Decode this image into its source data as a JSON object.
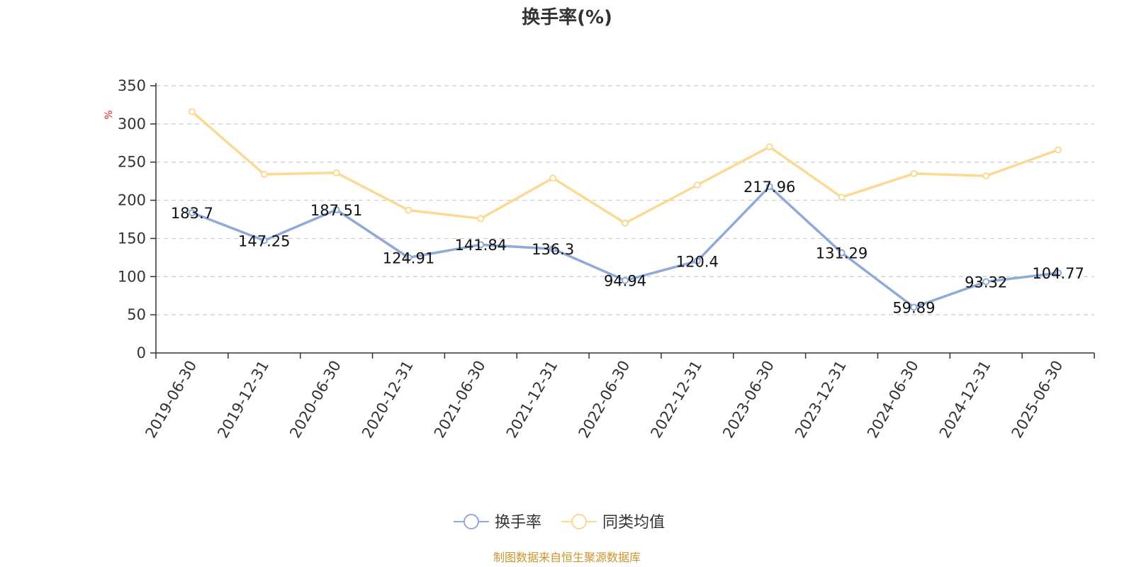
{
  "chart_data": {
    "type": "line",
    "title": "换手率(%)",
    "ylabel": "%",
    "ylim": [
      0,
      350
    ],
    "yticks": [
      0,
      50,
      100,
      150,
      200,
      250,
      300,
      350
    ],
    "grid": true,
    "legend_position": "bottom-center",
    "categories": [
      "2019-06-30",
      "2019-12-31",
      "2020-06-30",
      "2020-12-31",
      "2021-06-30",
      "2021-12-31",
      "2022-06-30",
      "2022-12-31",
      "2023-06-30",
      "2023-12-31",
      "2024-06-30",
      "2024-12-31",
      "2025-06-30"
    ],
    "series": [
      {
        "name": "换手率",
        "color": "#8eaad6",
        "values": [
          183.7,
          147.25,
          187.51,
          124.91,
          141.84,
          136.3,
          94.94,
          120.4,
          217.96,
          131.29,
          59.89,
          93.32,
          104.77
        ],
        "labels": [
          "183.7",
          "147.25",
          "187.51",
          "124.91",
          "141.84",
          "136.3",
          "94.94",
          "120.4",
          "217.96",
          "131.29",
          "59.89",
          "93.32",
          "104.77"
        ]
      },
      {
        "name": "同类均值",
        "color": "#fbd995",
        "values": [
          316,
          234,
          236,
          187,
          176,
          229,
          170,
          220,
          270,
          204,
          235,
          232,
          266
        ]
      }
    ]
  },
  "footer": {
    "source": "制图数据来自恒生聚源数据库"
  }
}
